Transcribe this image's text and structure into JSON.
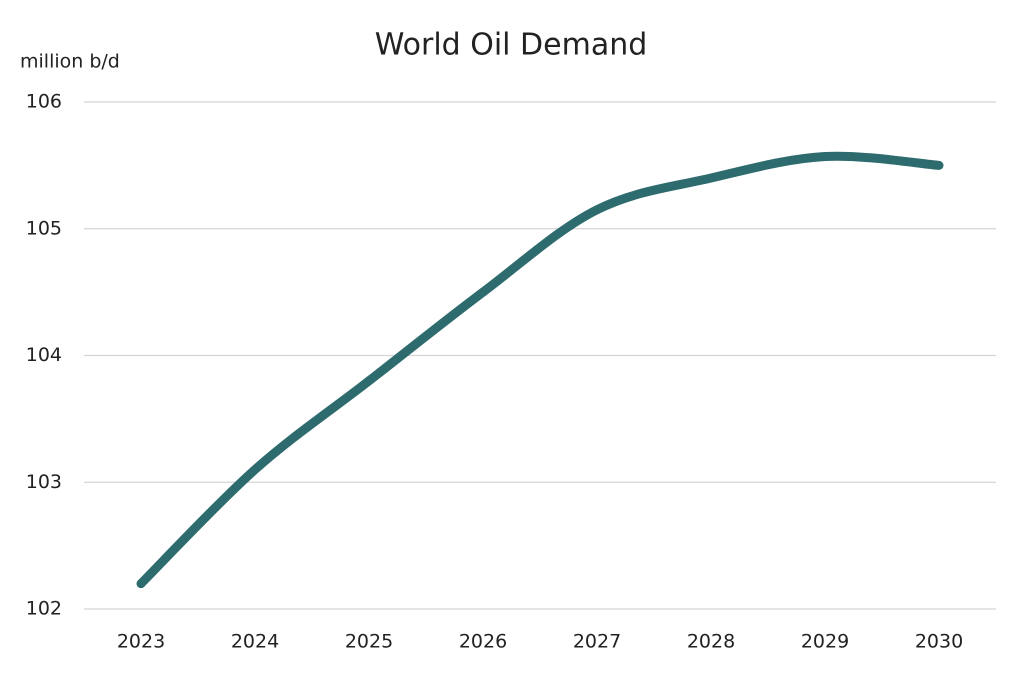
{
  "chart_data": {
    "type": "line",
    "title": "World Oil Demand",
    "y_label": "million b/d",
    "categories": [
      "2023",
      "2024",
      "2025",
      "2026",
      "2027",
      "2028",
      "2029",
      "2030"
    ],
    "values": [
      102.2,
      103.1,
      103.8,
      104.5,
      105.15,
      105.4,
      105.57,
      105.5
    ],
    "color": "#2e6b6e",
    "smooth": true,
    "ylim": [
      102,
      106
    ],
    "yticks": [
      102,
      103,
      104,
      105,
      106
    ],
    "grid": true
  }
}
